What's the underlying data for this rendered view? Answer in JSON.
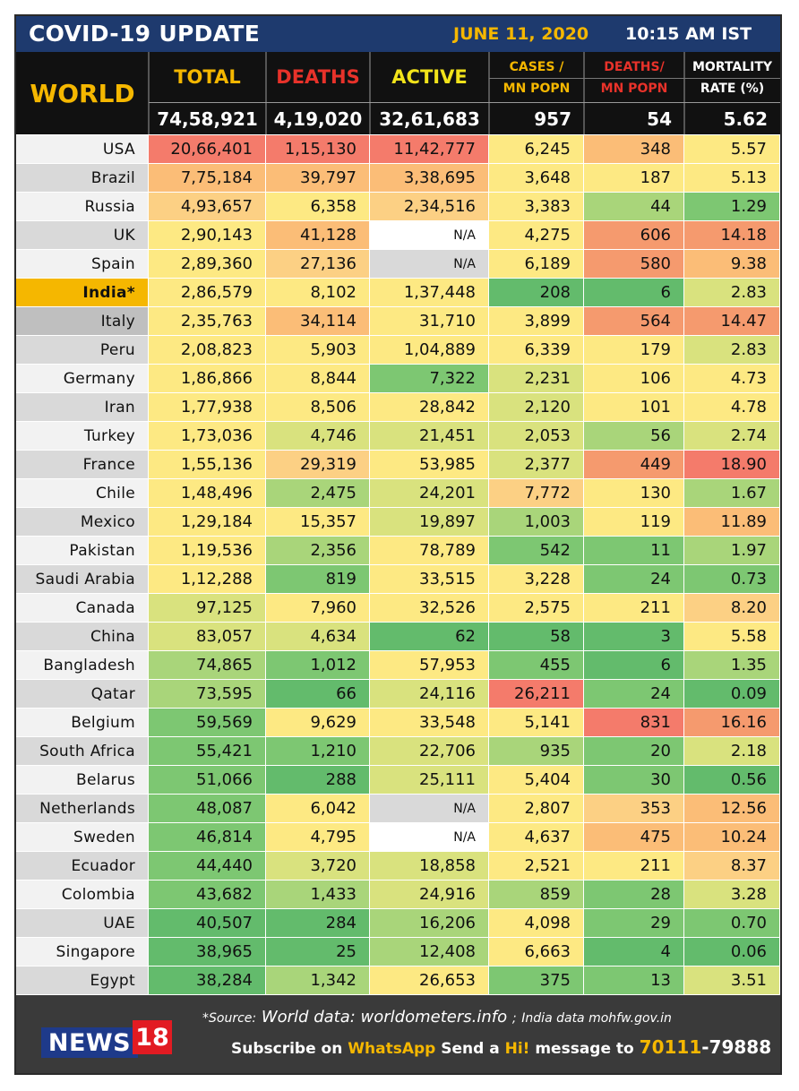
{
  "header": {
    "title": "COVID-19 UPDATE",
    "date": "JUNE 11, 2020",
    "time": "10:15 AM IST"
  },
  "columns": {
    "world": "WORLD",
    "total": "TOTAL",
    "deaths": "DEATHS",
    "active": "ACTIVE",
    "cases_mn_1": "CASES /",
    "cases_mn_2": "MN POPN",
    "deaths_mn_1": "DEATHS/",
    "deaths_mn_2": "MN POPN",
    "mortality_1": "MORTALITY",
    "mortality_2": "RATE (%)"
  },
  "world_totals": {
    "total": "74,58,921",
    "deaths": "4,19,020",
    "active": "32,61,683",
    "cases_mn": "957",
    "deaths_mn": "54",
    "mortality": "5.62"
  },
  "colors": {
    "red": "#f47b6b",
    "orange": "#fbbd77",
    "lightorange": "#fcd084",
    "yellow": "#fde983",
    "lime": "#d9e27e",
    "lightgreen": "#a9d57a",
    "green": "#7dc772",
    "darkgreen": "#63bb6c",
    "salmon": "#f59a6e",
    "na_white": "#ffffff",
    "na_grey": "#d9d9d9",
    "name_white": "#f2f2f2",
    "name_grey": "#d9d9d9",
    "name_india": "#f5b700",
    "name_italy": "#bfbfbf"
  },
  "rows": [
    {
      "name": "USA",
      "name_bg": "name_white",
      "total": "20,66,401",
      "total_c": "red",
      "deaths": "1,15,130",
      "deaths_c": "red",
      "active": "11,42,777",
      "active_c": "red",
      "cmn": "6,245",
      "cmn_c": "yellow",
      "dmn": "348",
      "dmn_c": "orange",
      "mort": "5.57",
      "mort_c": "yellow"
    },
    {
      "name": "Brazil",
      "name_bg": "name_grey",
      "total": "7,75,184",
      "total_c": "orange",
      "deaths": "39,797",
      "deaths_c": "orange",
      "active": "3,38,695",
      "active_c": "orange",
      "cmn": "3,648",
      "cmn_c": "yellow",
      "dmn": "187",
      "dmn_c": "yellow",
      "mort": "5.13",
      "mort_c": "yellow"
    },
    {
      "name": "Russia",
      "name_bg": "name_white",
      "total": "4,93,657",
      "total_c": "lightorange",
      "deaths": "6,358",
      "deaths_c": "yellow",
      "active": "2,34,516",
      "active_c": "lightorange",
      "cmn": "3,383",
      "cmn_c": "yellow",
      "dmn": "44",
      "dmn_c": "lightgreen",
      "mort": "1.29",
      "mort_c": "green"
    },
    {
      "name": "UK",
      "name_bg": "name_grey",
      "total": "2,90,143",
      "total_c": "yellow",
      "deaths": "41,128",
      "deaths_c": "orange",
      "active": "N/A",
      "active_c": "na_white",
      "cmn": "4,275",
      "cmn_c": "yellow",
      "dmn": "606",
      "dmn_c": "salmon",
      "mort": "14.18",
      "mort_c": "salmon"
    },
    {
      "name": "Spain",
      "name_bg": "name_white",
      "total": "2,89,360",
      "total_c": "yellow",
      "deaths": "27,136",
      "deaths_c": "lightorange",
      "active": "N/A",
      "active_c": "na_grey",
      "cmn": "6,189",
      "cmn_c": "yellow",
      "dmn": "580",
      "dmn_c": "salmon",
      "mort": "9.38",
      "mort_c": "orange"
    },
    {
      "name": "India*",
      "name_bg": "name_india",
      "bold": true,
      "total": "2,86,579",
      "total_c": "yellow",
      "deaths": "8,102",
      "deaths_c": "yellow",
      "active": "1,37,448",
      "active_c": "yellow",
      "cmn": "208",
      "cmn_c": "darkgreen",
      "dmn": "6",
      "dmn_c": "darkgreen",
      "mort": "2.83",
      "mort_c": "lime"
    },
    {
      "name": "Italy",
      "name_bg": "name_italy",
      "total": "2,35,763",
      "total_c": "yellow",
      "deaths": "34,114",
      "deaths_c": "orange",
      "active": "31,710",
      "active_c": "yellow",
      "cmn": "3,899",
      "cmn_c": "yellow",
      "dmn": "564",
      "dmn_c": "salmon",
      "mort": "14.47",
      "mort_c": "salmon"
    },
    {
      "name": "Peru",
      "name_bg": "name_grey",
      "total": "2,08,823",
      "total_c": "yellow",
      "deaths": "5,903",
      "deaths_c": "yellow",
      "active": "1,04,889",
      "active_c": "yellow",
      "cmn": "6,339",
      "cmn_c": "yellow",
      "dmn": "179",
      "dmn_c": "yellow",
      "mort": "2.83",
      "mort_c": "lime"
    },
    {
      "name": "Germany",
      "name_bg": "name_white",
      "total": "1,86,866",
      "total_c": "yellow",
      "deaths": "8,844",
      "deaths_c": "yellow",
      "active": "7,322",
      "active_c": "green",
      "cmn": "2,231",
      "cmn_c": "lime",
      "dmn": "106",
      "dmn_c": "yellow",
      "mort": "4.73",
      "mort_c": "yellow"
    },
    {
      "name": "Iran",
      "name_bg": "name_grey",
      "total": "1,77,938",
      "total_c": "yellow",
      "deaths": "8,506",
      "deaths_c": "yellow",
      "active": "28,842",
      "active_c": "yellow",
      "cmn": "2,120",
      "cmn_c": "lime",
      "dmn": "101",
      "dmn_c": "yellow",
      "mort": "4.78",
      "mort_c": "yellow"
    },
    {
      "name": "Turkey",
      "name_bg": "name_white",
      "total": "1,73,036",
      "total_c": "yellow",
      "deaths": "4,746",
      "deaths_c": "lime",
      "active": "21,451",
      "active_c": "lime",
      "cmn": "2,053",
      "cmn_c": "lime",
      "dmn": "56",
      "dmn_c": "lightgreen",
      "mort": "2.74",
      "mort_c": "lime"
    },
    {
      "name": "France",
      "name_bg": "name_grey",
      "total": "1,55,136",
      "total_c": "yellow",
      "deaths": "29,319",
      "deaths_c": "lightorange",
      "active": "53,985",
      "active_c": "yellow",
      "cmn": "2,377",
      "cmn_c": "lime",
      "dmn": "449",
      "dmn_c": "salmon",
      "mort": "18.90",
      "mort_c": "red"
    },
    {
      "name": "Chile",
      "name_bg": "name_white",
      "total": "1,48,496",
      "total_c": "yellow",
      "deaths": "2,475",
      "deaths_c": "lightgreen",
      "active": "24,201",
      "active_c": "lime",
      "cmn": "7,772",
      "cmn_c": "lightorange",
      "dmn": "130",
      "dmn_c": "yellow",
      "mort": "1.67",
      "mort_c": "lightgreen"
    },
    {
      "name": "Mexico",
      "name_bg": "name_grey",
      "total": "1,29,184",
      "total_c": "yellow",
      "deaths": "15,357",
      "deaths_c": "yellow",
      "active": "19,897",
      "active_c": "lime",
      "cmn": "1,003",
      "cmn_c": "lightgreen",
      "dmn": "119",
      "dmn_c": "yellow",
      "mort": "11.89",
      "mort_c": "orange"
    },
    {
      "name": "Pakistan",
      "name_bg": "name_white",
      "total": "1,19,536",
      "total_c": "yellow",
      "deaths": "2,356",
      "deaths_c": "lightgreen",
      "active": "78,789",
      "active_c": "yellow",
      "cmn": "542",
      "cmn_c": "green",
      "dmn": "11",
      "dmn_c": "green",
      "mort": "1.97",
      "mort_c": "lightgreen"
    },
    {
      "name": "Saudi Arabia",
      "name_bg": "name_grey",
      "total": "1,12,288",
      "total_c": "yellow",
      "deaths": "819",
      "deaths_c": "green",
      "active": "33,515",
      "active_c": "yellow",
      "cmn": "3,228",
      "cmn_c": "yellow",
      "dmn": "24",
      "dmn_c": "green",
      "mort": "0.73",
      "mort_c": "green"
    },
    {
      "name": "Canada",
      "name_bg": "name_white",
      "total": "97,125",
      "total_c": "lime",
      "deaths": "7,960",
      "deaths_c": "yellow",
      "active": "32,526",
      "active_c": "yellow",
      "cmn": "2,575",
      "cmn_c": "yellow",
      "dmn": "211",
      "dmn_c": "yellow",
      "mort": "8.20",
      "mort_c": "lightorange"
    },
    {
      "name": "China",
      "name_bg": "name_grey",
      "total": "83,057",
      "total_c": "lime",
      "deaths": "4,634",
      "deaths_c": "lime",
      "active": "62",
      "active_c": "darkgreen",
      "cmn": "58",
      "cmn_c": "darkgreen",
      "dmn": "3",
      "dmn_c": "darkgreen",
      "mort": "5.58",
      "mort_c": "yellow"
    },
    {
      "name": "Bangladesh",
      "name_bg": "name_white",
      "total": "74,865",
      "total_c": "lightgreen",
      "deaths": "1,012",
      "deaths_c": "green",
      "active": "57,953",
      "active_c": "yellow",
      "cmn": "455",
      "cmn_c": "green",
      "dmn": "6",
      "dmn_c": "darkgreen",
      "mort": "1.35",
      "mort_c": "lightgreen"
    },
    {
      "name": "Qatar",
      "name_bg": "name_grey",
      "total": "73,595",
      "total_c": "lightgreen",
      "deaths": "66",
      "deaths_c": "darkgreen",
      "active": "24,116",
      "active_c": "lime",
      "cmn": "26,211",
      "cmn_c": "red",
      "dmn": "24",
      "dmn_c": "green",
      "mort": "0.09",
      "mort_c": "darkgreen"
    },
    {
      "name": "Belgium",
      "name_bg": "name_white",
      "total": "59,569",
      "total_c": "green",
      "deaths": "9,629",
      "deaths_c": "yellow",
      "active": "33,548",
      "active_c": "yellow",
      "cmn": "5,141",
      "cmn_c": "yellow",
      "dmn": "831",
      "dmn_c": "red",
      "mort": "16.16",
      "mort_c": "salmon"
    },
    {
      "name": "South Africa",
      "name_bg": "name_grey",
      "total": "55,421",
      "total_c": "green",
      "deaths": "1,210",
      "deaths_c": "green",
      "active": "22,706",
      "active_c": "lime",
      "cmn": "935",
      "cmn_c": "lightgreen",
      "dmn": "20",
      "dmn_c": "green",
      "mort": "2.18",
      "mort_c": "lime"
    },
    {
      "name": "Belarus",
      "name_bg": "name_white",
      "total": "51,066",
      "total_c": "green",
      "deaths": "288",
      "deaths_c": "darkgreen",
      "active": "25,111",
      "active_c": "lime",
      "cmn": "5,404",
      "cmn_c": "yellow",
      "dmn": "30",
      "dmn_c": "green",
      "mort": "0.56",
      "mort_c": "darkgreen"
    },
    {
      "name": "Netherlands",
      "name_bg": "name_grey",
      "total": "48,087",
      "total_c": "green",
      "deaths": "6,042",
      "deaths_c": "yellow",
      "active": "N/A",
      "active_c": "na_grey",
      "cmn": "2,807",
      "cmn_c": "yellow",
      "dmn": "353",
      "dmn_c": "lightorange",
      "mort": "12.56",
      "mort_c": "orange"
    },
    {
      "name": "Sweden",
      "name_bg": "name_white",
      "total": "46,814",
      "total_c": "green",
      "deaths": "4,795",
      "deaths_c": "yellow",
      "active": "N/A",
      "active_c": "na_white",
      "cmn": "4,637",
      "cmn_c": "yellow",
      "dmn": "475",
      "dmn_c": "orange",
      "mort": "10.24",
      "mort_c": "orange"
    },
    {
      "name": "Ecuador",
      "name_bg": "name_grey",
      "total": "44,440",
      "total_c": "green",
      "deaths": "3,720",
      "deaths_c": "lime",
      "active": "18,858",
      "active_c": "lime",
      "cmn": "2,521",
      "cmn_c": "yellow",
      "dmn": "211",
      "dmn_c": "yellow",
      "mort": "8.37",
      "mort_c": "lightorange"
    },
    {
      "name": "Colombia",
      "name_bg": "name_white",
      "total": "43,682",
      "total_c": "green",
      "deaths": "1,433",
      "deaths_c": "lightgreen",
      "active": "24,916",
      "active_c": "lime",
      "cmn": "859",
      "cmn_c": "lightgreen",
      "dmn": "28",
      "dmn_c": "green",
      "mort": "3.28",
      "mort_c": "lime"
    },
    {
      "name": "UAE",
      "name_bg": "name_grey",
      "total": "40,507",
      "total_c": "darkgreen",
      "deaths": "284",
      "deaths_c": "darkgreen",
      "active": "16,206",
      "active_c": "lightgreen",
      "cmn": "4,098",
      "cmn_c": "yellow",
      "dmn": "29",
      "dmn_c": "green",
      "mort": "0.70",
      "mort_c": "green"
    },
    {
      "name": "Singapore",
      "name_bg": "name_white",
      "total": "38,965",
      "total_c": "darkgreen",
      "deaths": "25",
      "deaths_c": "darkgreen",
      "active": "12,408",
      "active_c": "lightgreen",
      "cmn": "6,663",
      "cmn_c": "yellow",
      "dmn": "4",
      "dmn_c": "darkgreen",
      "mort": "0.06",
      "mort_c": "darkgreen"
    },
    {
      "name": "Egypt",
      "name_bg": "name_grey",
      "total": "38,284",
      "total_c": "darkgreen",
      "deaths": "1,342",
      "deaths_c": "lightgreen",
      "active": "26,653",
      "active_c": "yellow",
      "cmn": "375",
      "cmn_c": "green",
      "dmn": "13",
      "dmn_c": "green",
      "mort": "3.51",
      "mort_c": "lime"
    }
  ],
  "footer": {
    "logo_news": "NEWS",
    "logo_18": "18",
    "source_prefix": "*Source:",
    "source_world": "World data: worldometers.info",
    "source_sep": ";",
    "source_india": "India data mohfw.gov.in",
    "subscribe_1": "Subscribe on",
    "subscribe_whatsapp": "WhatsApp",
    "subscribe_2": "Send a",
    "subscribe_hi": "Hi!",
    "subscribe_3": "message to",
    "phone_1": "70111",
    "phone_2": "-79888"
  }
}
